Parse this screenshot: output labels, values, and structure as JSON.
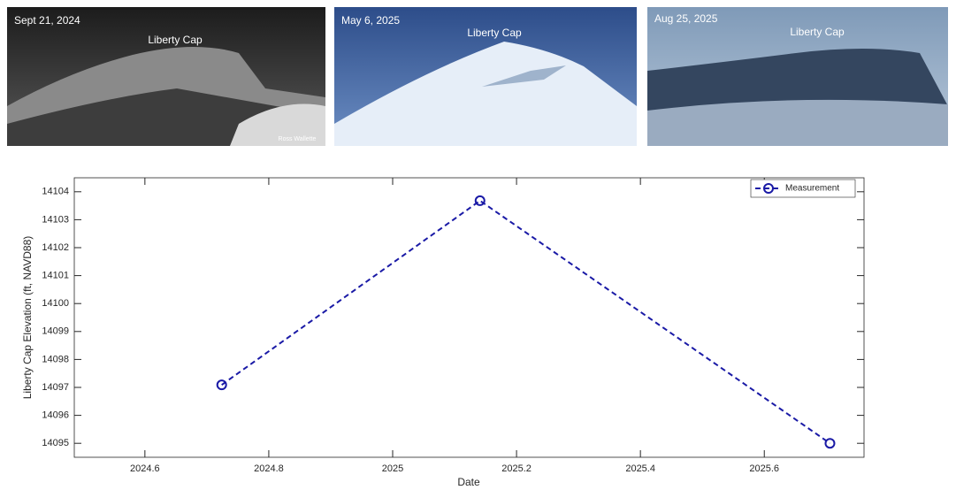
{
  "photos": [
    {
      "date": "Sept 21, 2024",
      "label": "Liberty Cap",
      "credit": "Ross Wallette"
    },
    {
      "date": "May 6, 2025",
      "label": "Liberty Cap"
    },
    {
      "date": "Aug 25, 2025",
      "label": "Liberty Cap"
    }
  ],
  "chart_data": {
    "type": "line",
    "x_label": "Date",
    "y_label": "Liberty Cap Elevation (ft, NAVD88)",
    "x": [
      2024.724,
      2025.141,
      2025.706
    ],
    "series": [
      {
        "name": "Measurement",
        "color": "#1a1aa6",
        "values": [
          14097.09,
          14103.68,
          14095.0
        ]
      }
    ],
    "line_style": "dashed",
    "marker": "circle",
    "xlim": [
      2024.486,
      2025.761
    ],
    "xticks": [
      2024.6,
      2024.8,
      2025,
      2025.2,
      2025.4,
      2025.6
    ],
    "ylim": [
      14094.5,
      14104.5
    ],
    "yticks": [
      14095,
      14096,
      14097,
      14098,
      14099,
      14100,
      14101,
      14102,
      14103,
      14104
    ],
    "grid": false,
    "legend": "upper-right"
  }
}
